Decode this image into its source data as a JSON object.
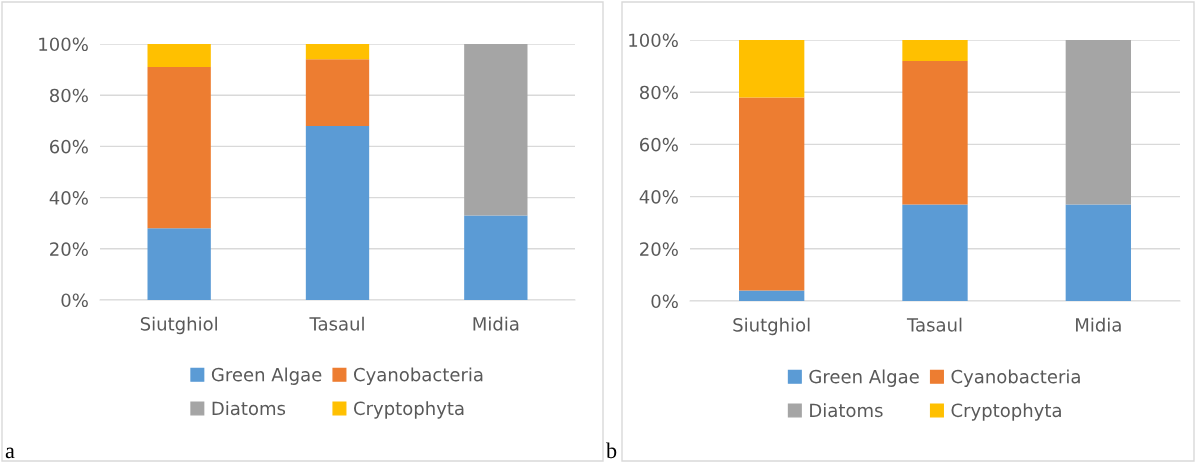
{
  "chart_data": [
    {
      "type": "bar",
      "stacked": true,
      "categories": [
        "Siutghiol",
        "Tasaul",
        "Midia"
      ],
      "series": [
        {
          "name": "Green Algae",
          "color": "#5b9bd5",
          "values": [
            28,
            68,
            33
          ]
        },
        {
          "name": "Cyanobacteria",
          "color": "#ed7d31",
          "values": [
            63,
            26,
            null
          ]
        },
        {
          "name": "Diatoms",
          "color": "#a5a5a5",
          "values": [
            null,
            null,
            67
          ]
        },
        {
          "name": "Cryptophyta",
          "color": "#ffc000",
          "values": [
            9,
            6,
            null
          ]
        }
      ],
      "ylim": [
        0,
        100
      ],
      "yticks": [
        {
          "value": 0,
          "label": "0%"
        },
        {
          "value": 20,
          "label": "20%"
        },
        {
          "value": 40,
          "label": "40%"
        },
        {
          "value": 60,
          "label": "60%"
        },
        {
          "value": 80,
          "label": "80%"
        },
        {
          "value": 100,
          "label": "100%"
        }
      ],
      "grid": "y",
      "legend": "bottom",
      "annotations": [
        "a"
      ]
    },
    {
      "type": "bar",
      "stacked": true,
      "categories": [
        "Siutghiol",
        "Tasaul",
        "Midia"
      ],
      "series": [
        {
          "name": "Green Algae",
          "color": "#5b9bd5",
          "values": [
            4,
            37,
            37
          ]
        },
        {
          "name": "Cyanobacteria",
          "color": "#ed7d31",
          "values": [
            74,
            55,
            null
          ]
        },
        {
          "name": "Diatoms",
          "color": "#a5a5a5",
          "values": [
            null,
            null,
            63
          ]
        },
        {
          "name": "Cryptophyta",
          "color": "#ffc000",
          "values": [
            22,
            8,
            null
          ]
        }
      ],
      "ylim": [
        0,
        100
      ],
      "yticks": [
        {
          "value": 0,
          "label": "0%"
        },
        {
          "value": 20,
          "label": "20%"
        },
        {
          "value": 40,
          "label": "40%"
        },
        {
          "value": 60,
          "label": "60%"
        },
        {
          "value": 80,
          "label": "80%"
        },
        {
          "value": 100,
          "label": "100%"
        }
      ],
      "grid": "y",
      "legend": "bottom",
      "annotations": [
        "b"
      ]
    }
  ]
}
